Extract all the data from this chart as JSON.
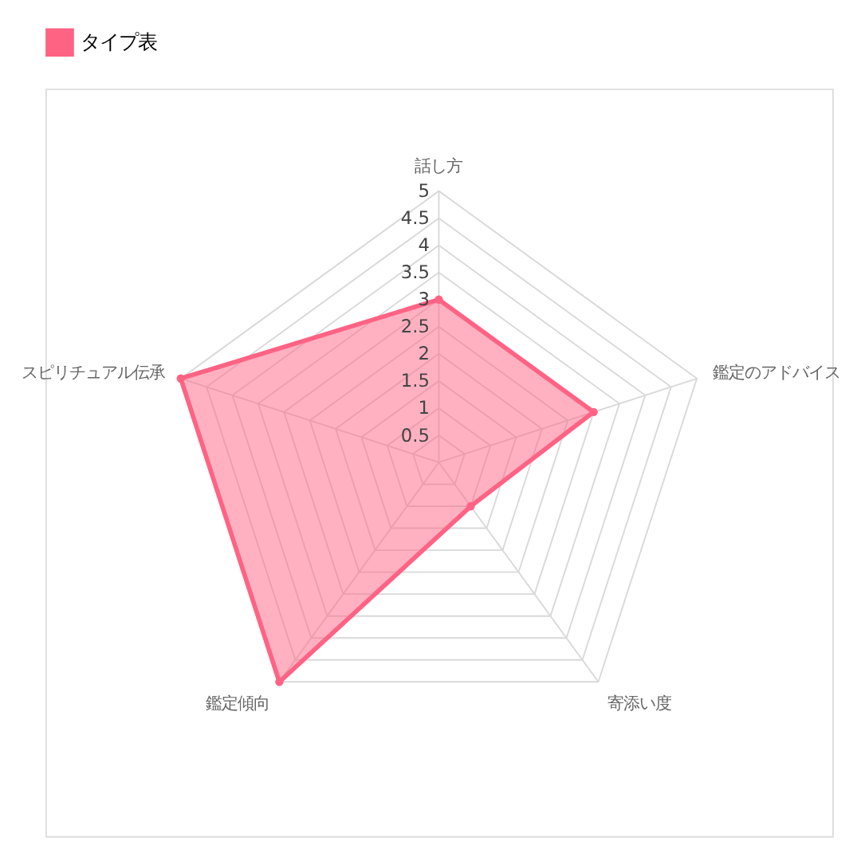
{
  "chart_data": {
    "type": "radar",
    "categories": [
      "話し方",
      "鑑定のアドバイス",
      "寄添い度",
      "鑑定傾向",
      "スピリチュアル伝承"
    ],
    "series": [
      {
        "name": "タイプ表",
        "color": "#ff6384",
        "values": [
          3,
          3,
          1,
          5,
          5
        ]
      }
    ],
    "ylim": [
      0,
      5
    ],
    "yticks": [
      0.5,
      1,
      1.5,
      2,
      2.5,
      3,
      3.5,
      4,
      4.5,
      5
    ],
    "grid": true,
    "legend": "top",
    "marker": "circle",
    "line_style": "solid"
  }
}
